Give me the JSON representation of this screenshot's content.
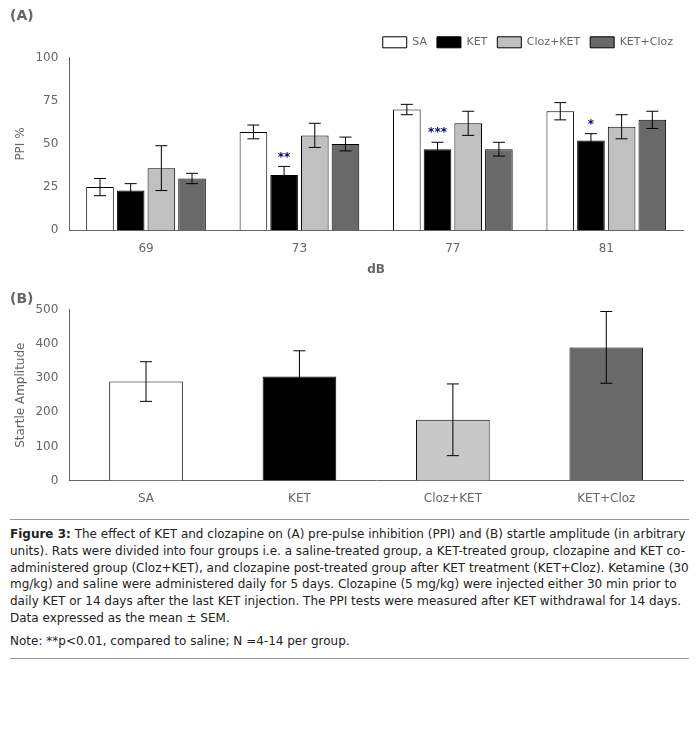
{
  "chart_data": [
    {
      "type": "bar",
      "title": "(A)",
      "xlabel": "dB",
      "ylabel": "PPI %",
      "categories": [
        "69",
        "73",
        "77",
        "81"
      ],
      "series": [
        {
          "name": "SA",
          "color": "white",
          "values": [
            25,
            57,
            70,
            69
          ],
          "errors": [
            5,
            4,
            3,
            5
          ]
        },
        {
          "name": "KET",
          "color": "black",
          "values": [
            23,
            32,
            47,
            52
          ],
          "errors": [
            4,
            5,
            4,
            4
          ]
        },
        {
          "name": "Cloz+KET",
          "color": "#c0c0c0",
          "values": [
            36,
            55,
            62,
            60
          ],
          "errors": [
            13,
            7,
            7,
            7
          ]
        },
        {
          "name": "KET+Cloz",
          "color": "#696969",
          "values": [
            30,
            50,
            47,
            64
          ],
          "errors": [
            3,
            4,
            4,
            5
          ]
        }
      ],
      "annotations": [
        {
          "series": "KET",
          "category": "73",
          "text": "**",
          "color": "#000080"
        },
        {
          "series": "KET",
          "category": "77",
          "text": "***",
          "color": "#000080"
        },
        {
          "series": "KET",
          "category": "81",
          "text": "*",
          "color": "#000080"
        }
      ],
      "ylim": [
        0,
        100
      ],
      "yticks": [
        0,
        25,
        50,
        75,
        100
      ],
      "grid": false,
      "legend": "upper right"
    },
    {
      "type": "bar",
      "title": "(B)",
      "ylabel": "Startle Amplitude",
      "categories": [
        "SA",
        "KET",
        "Cloz+KET",
        "KET+Cloz"
      ],
      "values": [
        290,
        305,
        178,
        390
      ],
      "errors": [
        58,
        75,
        105,
        105
      ],
      "colors": [
        "white",
        "black",
        "#c8c8c8",
        "#696969"
      ],
      "ylim": [
        0,
        500
      ],
      "yticks": [
        0,
        100,
        200,
        300,
        400,
        500
      ],
      "grid": false
    }
  ],
  "caption": "Figure 3: The effect of KET and clozapine on (A) pre-pulse inhibition (PPI) and (B) startle amplitude (in arbitrary units). Rats were divided into four groups i.e. a saline-treated group, a KET-treated group, clozapine and KET co-administered group (Cloz+KET), and clozapine post-treated group after KET treatment (KET+Cloz). Ketamine (30 mg/kg) and saline were administered daily for 5 days. Clozapine (5 mg/kg) were injected either 30 min prior to daily KET or 14 days after the last KET injection. The PPI tests were measured after KET withdrawal for 14 days. Data expressed as the mean ± SEM.",
  "note": "Note: **p<0.01, compared to saline; N =4-14 per group."
}
